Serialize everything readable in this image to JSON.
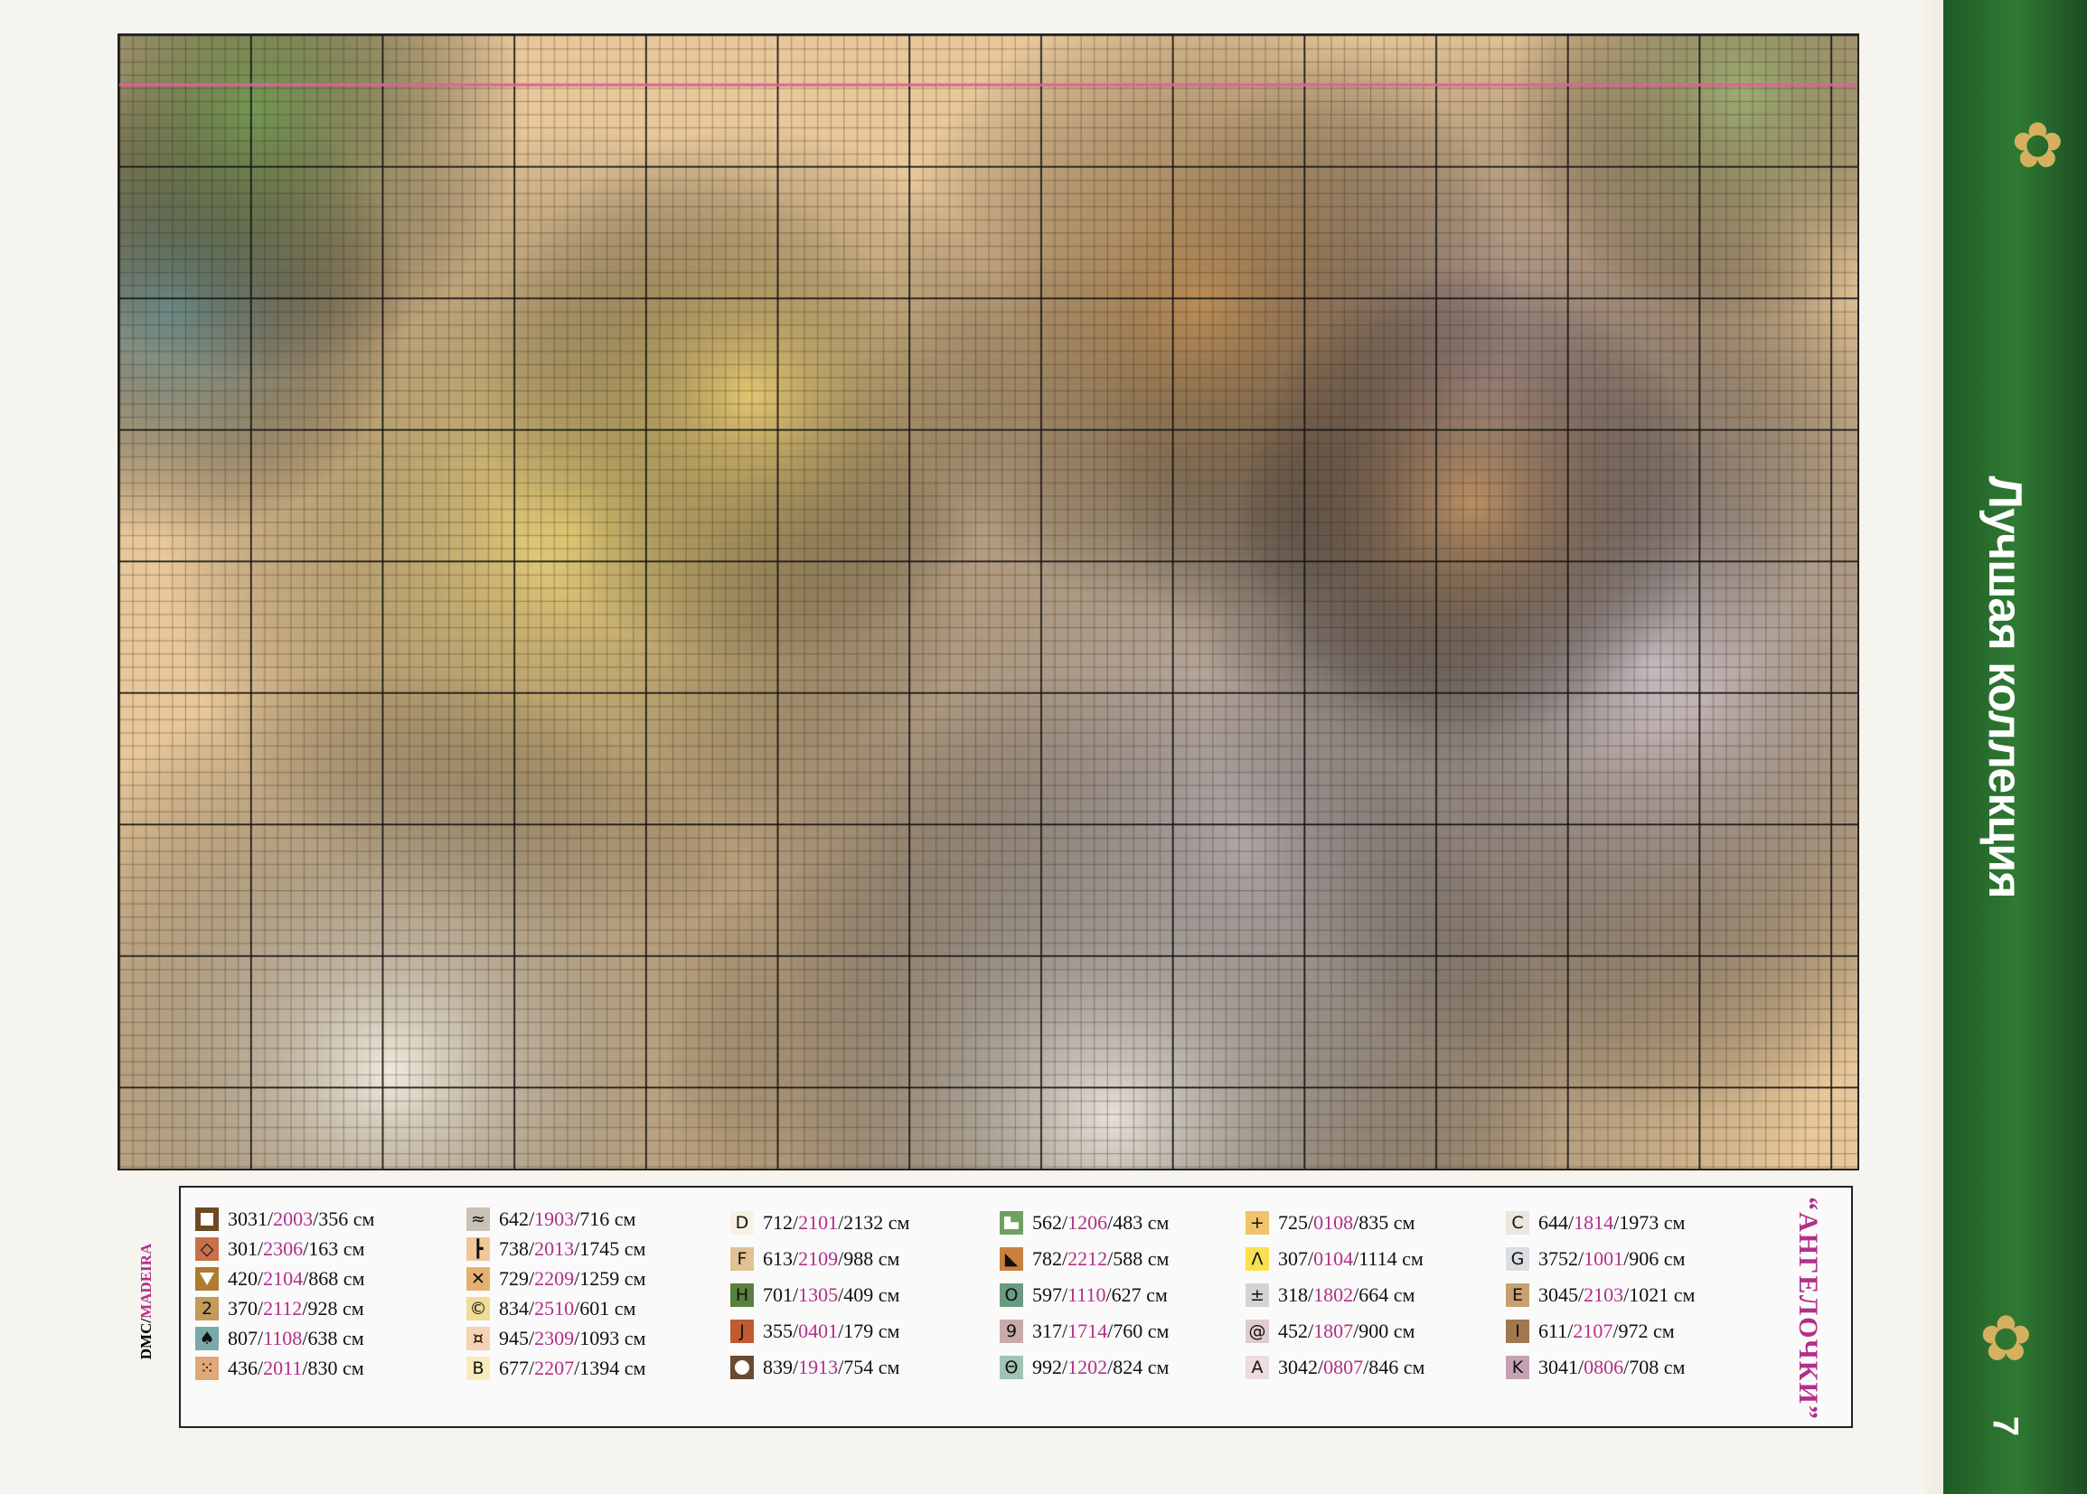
{
  "sidebar": {
    "title": "Лучшая коллекция",
    "page_number": "7",
    "accent": "#2f7a32"
  },
  "legend": {
    "brand_label_dmc": "DMC/",
    "brand_label_madeira": "MADEIRA",
    "pattern_title": "“АНГЕЛОЧКИ”",
    "columns": [
      [
        {
          "symbol": "",
          "icon": "white-square-icon",
          "color": "#6b4a22",
          "dmc": "3031",
          "madeira": "2003",
          "length": "356 см"
        },
        {
          "symbol": "◇",
          "icon": "diamond-icon",
          "color": "#c8704a",
          "dmc": "301",
          "madeira": "2306",
          "length": "163 см"
        },
        {
          "symbol": "",
          "icon": "down-triangle-icon",
          "color": "#b07a30",
          "dmc": "420",
          "madeira": "2104",
          "length": "868 см"
        },
        {
          "symbol": "2",
          "icon": "",
          "color": "#c49a5a",
          "dmc": "370",
          "madeira": "2112",
          "length": "928 см"
        },
        {
          "symbol": "♠",
          "icon": "spade-icon",
          "color": "#7aa8a8",
          "dmc": "807",
          "madeira": "1108",
          "length": "638 см"
        },
        {
          "symbol": "⁙",
          "icon": "dots-icon",
          "color": "#e0a878",
          "dmc": "436",
          "madeira": "2011",
          "length": "830 см"
        }
      ],
      [
        {
          "symbol": "≈",
          "icon": "",
          "color": "#c8c2b4",
          "dmc": "642",
          "madeira": "1903",
          "length": "716 см"
        },
        {
          "symbol": "┣",
          "icon": "tee-icon",
          "color": "#f0c898",
          "dmc": "738",
          "madeira": "2013",
          "length": "1745 см"
        },
        {
          "symbol": "✕",
          "icon": "cross-icon",
          "color": "#e6b070",
          "dmc": "729",
          "madeira": "2209",
          "length": "1259 см"
        },
        {
          "symbol": "©",
          "icon": "",
          "color": "#f3dc98",
          "dmc": "834",
          "madeira": "2510",
          "length": "601 см"
        },
        {
          "symbol": "¤",
          "icon": "",
          "color": "#f5d2b2",
          "dmc": "945",
          "madeira": "2309",
          "length": "1093 см"
        },
        {
          "symbol": "B",
          "icon": "",
          "color": "#f8ebbc",
          "dmc": "677",
          "madeira": "2207",
          "length": "1394 см"
        }
      ],
      [
        {
          "symbol": "D",
          "icon": "",
          "color": "#f8f2e4",
          "dmc": "712",
          "madeira": "2101",
          "length": "2132 см"
        },
        {
          "symbol": "F",
          "icon": "",
          "color": "#e2c292",
          "dmc": "613",
          "madeira": "2109",
          "length": "988 см"
        },
        {
          "symbol": "H",
          "icon": "",
          "color": "#5a8040",
          "dmc": "701",
          "madeira": "1305",
          "length": "409 см"
        },
        {
          "symbol": "J",
          "icon": "",
          "color": "#c05a30",
          "dmc": "355",
          "madeira": "0401",
          "length": "179 см"
        },
        {
          "symbol": "",
          "icon": "white-circle-icon",
          "color": "#6a4a30",
          "dmc": "839",
          "madeira": "1913",
          "length": "754 см"
        }
      ],
      [
        {
          "symbol": "",
          "icon": "white-corner-icon",
          "color": "#70a060",
          "dmc": "562",
          "madeira": "1206",
          "length": "483 см"
        },
        {
          "symbol": "◣",
          "icon": "dark-triangle-icon",
          "color": "#c88040",
          "dmc": "782",
          "madeira": "2212",
          "length": "588 см"
        },
        {
          "symbol": "O",
          "icon": "",
          "color": "#6a9a80",
          "dmc": "597",
          "madeira": "1110",
          "length": "627 см"
        },
        {
          "symbol": "9",
          "icon": "",
          "color": "#c8aaaa",
          "dmc": "317",
          "madeira": "1714",
          "length": "760 см"
        },
        {
          "symbol": "Θ",
          "icon": "",
          "color": "#a0c4b4",
          "dmc": "992",
          "madeira": "1202",
          "length": "824 см"
        }
      ],
      [
        {
          "symbol": "+",
          "icon": "",
          "color": "#f0c468",
          "dmc": "725",
          "madeira": "0108",
          "length": "835 см"
        },
        {
          "symbol": "Λ",
          "icon": "",
          "color": "#f8e050",
          "dmc": "307",
          "madeira": "0104",
          "length": "1114 см"
        },
        {
          "symbol": "±",
          "icon": "",
          "color": "#d4d4d4",
          "dmc": "318",
          "madeira": "1802",
          "length": "664 см"
        },
        {
          "symbol": "@",
          "icon": "",
          "color": "#decccc",
          "dmc": "452",
          "madeira": "1807",
          "length": "900 см"
        },
        {
          "symbol": "A",
          "icon": "",
          "color": "#ecdcdc",
          "dmc": "3042",
          "madeira": "0807",
          "length": "846 см"
        }
      ],
      [
        {
          "symbol": "C",
          "icon": "",
          "color": "#ebe7df",
          "dmc": "644",
          "madeira": "1814",
          "length": "1973 см"
        },
        {
          "symbol": "G",
          "icon": "",
          "color": "#dadee2",
          "dmc": "3752",
          "madeira": "1001",
          "length": "906 см"
        },
        {
          "symbol": "E",
          "icon": "",
          "color": "#c8a070",
          "dmc": "3045",
          "madeira": "2103",
          "length": "1021 см"
        },
        {
          "symbol": "I",
          "icon": "",
          "color": "#a07850",
          "dmc": "611",
          "madeira": "2107",
          "length": "972 см"
        },
        {
          "symbol": "K",
          "icon": "",
          "color": "#c4a2b4",
          "dmc": "3041",
          "madeira": "0806",
          "length": "708 см"
        }
      ]
    ]
  }
}
